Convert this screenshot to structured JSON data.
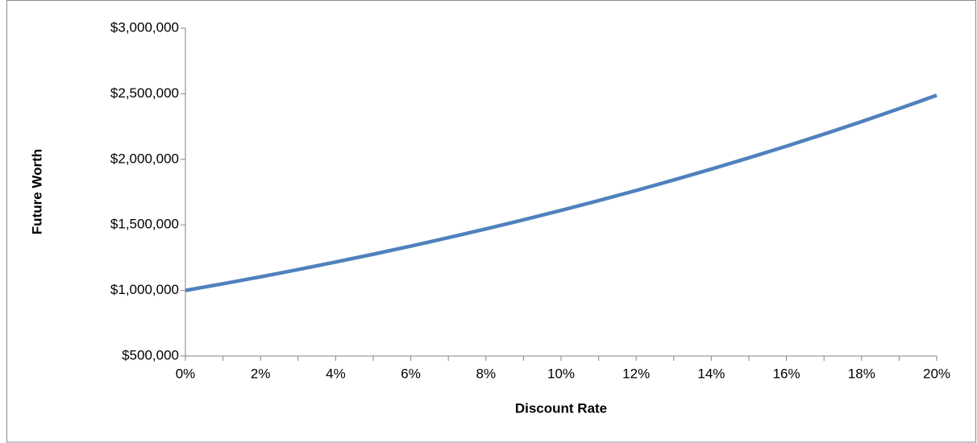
{
  "chart_data": {
    "type": "line",
    "x_label": "Discount Rate",
    "y_label": "Future Worth",
    "x": [
      0,
      1,
      2,
      3,
      4,
      5,
      6,
      7,
      8,
      9,
      10,
      11,
      12,
      13,
      14,
      15,
      16,
      17,
      18,
      19,
      20
    ],
    "series": [
      {
        "name": "Future Worth",
        "color": "#4f81bd",
        "values": [
          1000000,
          1051010,
          1104081,
          1159274,
          1216653,
          1276282,
          1338226,
          1402552,
          1469328,
          1538624,
          1610510,
          1685058,
          1762342,
          1842435,
          1925415,
          2011357,
          2100342,
          2192448,
          2287758,
          2386354,
          2488320
        ]
      }
    ],
    "xlim": [
      0,
      20
    ],
    "xticks": [
      {
        "value": 0,
        "label": "0%"
      },
      {
        "value": 2,
        "label": "2%"
      },
      {
        "value": 4,
        "label": "4%"
      },
      {
        "value": 6,
        "label": "6%"
      },
      {
        "value": 8,
        "label": "8%"
      },
      {
        "value": 10,
        "label": "10%"
      },
      {
        "value": 12,
        "label": "12%"
      },
      {
        "value": 14,
        "label": "14%"
      },
      {
        "value": 16,
        "label": "16%"
      },
      {
        "value": 18,
        "label": "18%"
      },
      {
        "value": 20,
        "label": "20%"
      }
    ],
    "xminorticks": [
      1,
      3,
      5,
      7,
      9,
      11,
      13,
      15,
      17,
      19
    ],
    "ylim": [
      500000,
      3000000
    ],
    "yticks": [
      {
        "value": 500000,
        "label": "$500,000"
      },
      {
        "value": 1000000,
        "label": "$1,000,000"
      },
      {
        "value": 1500000,
        "label": "$1,500,000"
      },
      {
        "value": 2000000,
        "label": "$2,000,000"
      },
      {
        "value": 2500000,
        "label": "$2,500,000"
      },
      {
        "value": 3000000,
        "label": "$3,000,000"
      }
    ],
    "grid": false,
    "legend": false
  }
}
